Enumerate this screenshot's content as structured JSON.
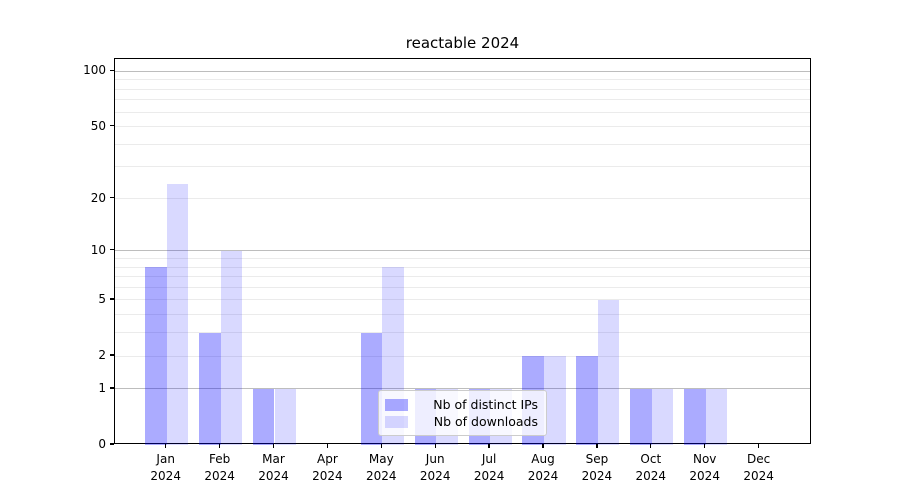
{
  "title": "reactable 2024",
  "chart_data": {
    "type": "bar",
    "title": "reactable 2024",
    "categories": [
      "Jan 2024",
      "Feb 2024",
      "Mar 2024",
      "Apr 2024",
      "May 2024",
      "Jun 2024",
      "Jul 2024",
      "Aug 2024",
      "Sep 2024",
      "Oct 2024",
      "Nov 2024",
      "Dec 2024"
    ],
    "series": [
      {
        "name": "Nb of distinct IPs",
        "color": "#aaaaff",
        "fill": "rgba(0,0,255,0.33)",
        "values": [
          8,
          3,
          1,
          0,
          3,
          1,
          1,
          2,
          2,
          1,
          1,
          0
        ]
      },
      {
        "name": "Nb of downloads",
        "color": "#d9d9ff",
        "fill": "rgba(0,0,255,0.15)",
        "values": [
          24,
          10,
          1,
          0,
          8,
          1,
          1,
          2,
          5,
          1,
          1,
          0
        ]
      }
    ],
    "xlabel": "",
    "ylabel": "",
    "yscale": "log1p",
    "grid": "horizontal",
    "legend_position": "lower center",
    "y_axis": {
      "tick_values": [
        0,
        1,
        2,
        5,
        10,
        20,
        50,
        100
      ],
      "tick_labels": [
        "0",
        "1",
        "2",
        "5",
        "10",
        "20",
        "50",
        "100"
      ],
      "major_gridlines": [
        1,
        10,
        100
      ],
      "minor_gridlines": [
        2,
        3,
        4,
        5,
        6,
        7,
        8,
        9,
        20,
        30,
        40,
        50,
        60,
        70,
        80,
        90
      ],
      "top_value": 117
    },
    "colors": {
      "axis": "#000000",
      "major_grid": "#bdbdbd",
      "minor_grid": "#ebebeb",
      "legend_border": "#cccccc"
    }
  }
}
